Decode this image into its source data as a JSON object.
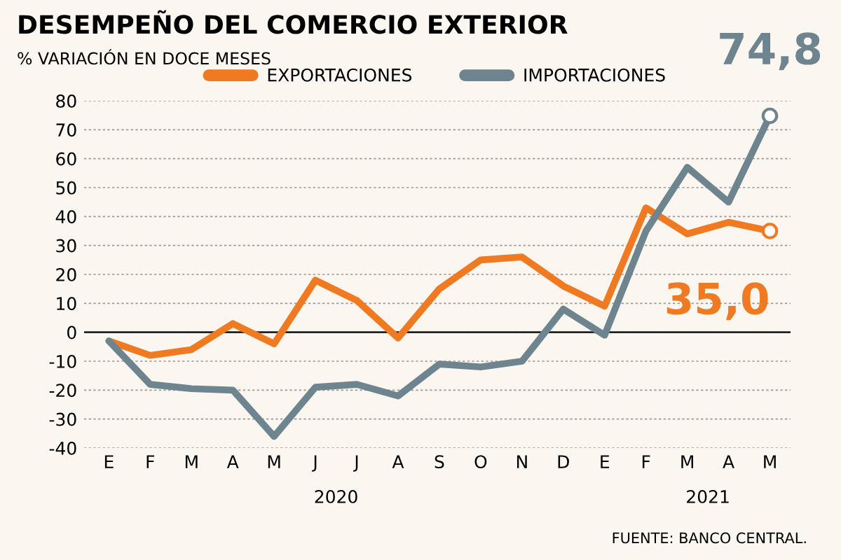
{
  "chart_data": {
    "type": "line",
    "title": "DESEMPEÑO DEL COMERCIO EXTERIOR",
    "subtitle": "% VARIACIÓN EN DOCE MESES",
    "categories": [
      "E",
      "F",
      "M",
      "A",
      "M",
      "J",
      "J",
      "A",
      "S",
      "O",
      "N",
      "D",
      "E",
      "F",
      "M",
      "A",
      "M"
    ],
    "series": [
      {
        "name": "EXPORTACIONES",
        "color": "#f07a22",
        "values": [
          -3,
          -8,
          -6,
          3,
          -4,
          18,
          11,
          -2,
          15,
          25,
          26,
          16,
          9,
          43,
          34,
          38,
          35.0
        ],
        "value_labels": [
          null,
          null,
          null,
          null,
          null,
          null,
          null,
          null,
          null,
          null,
          null,
          null,
          null,
          null,
          null,
          null,
          "35,0"
        ]
      },
      {
        "name": "IMPORTACIONES",
        "color": "#6e8590",
        "values": [
          -3,
          -18,
          -19.5,
          -20,
          -36,
          -19,
          -18,
          -22,
          -11,
          -12,
          -10,
          8,
          -1,
          35,
          57,
          45,
          74.8
        ],
        "value_labels": [
          null,
          null,
          null,
          null,
          null,
          null,
          null,
          null,
          null,
          null,
          null,
          null,
          null,
          null,
          null,
          null,
          "74,8"
        ]
      }
    ],
    "ylim": [
      -40,
      80
    ],
    "yticks": [
      -40,
      -30,
      -20,
      -10,
      0,
      10,
      20,
      30,
      40,
      50,
      60,
      70,
      80
    ],
    "ref_lines": [
      {
        "axis": "y",
        "value": 0,
        "color": "#222222"
      }
    ],
    "grid": "y",
    "legend": "top",
    "line_style": "solid",
    "annotations": [
      "2020",
      "2021",
      "FUENTE: BANCO CENTRAL."
    ]
  }
}
